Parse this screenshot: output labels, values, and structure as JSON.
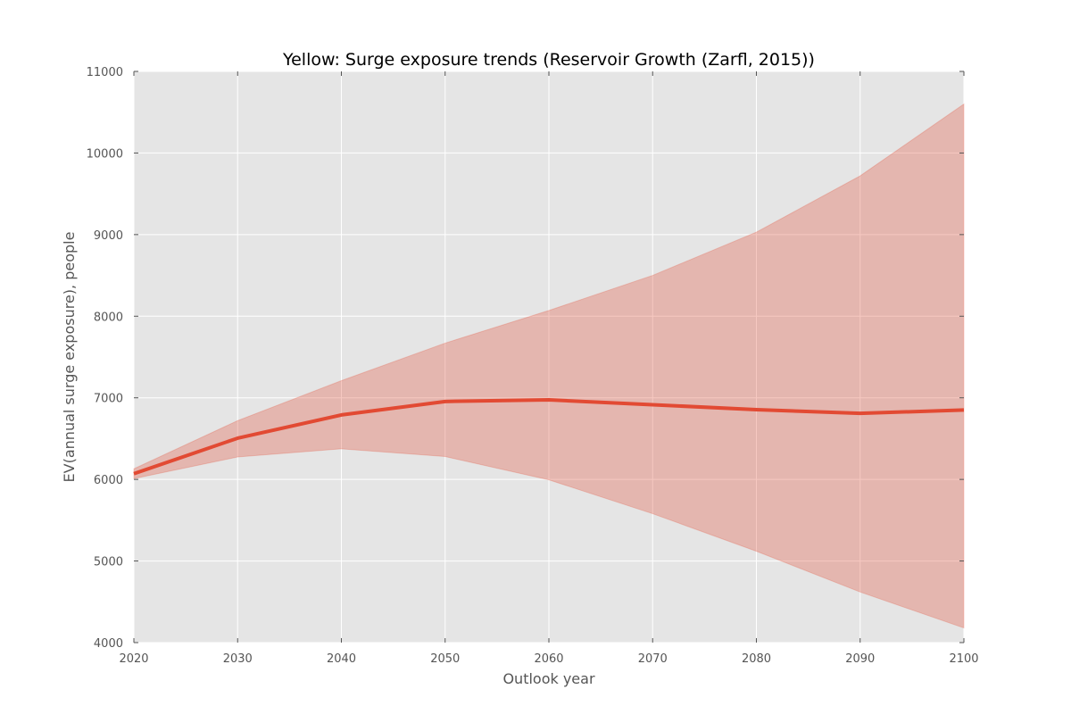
{
  "chart_data": {
    "type": "line",
    "title": "Yellow: Surge exposure trends (Reservoir Growth (Zarfl, 2015))",
    "xlabel": "Outlook year",
    "ylabel": "EV(annual surge exposure), people",
    "x": [
      2020,
      2030,
      2040,
      2050,
      2060,
      2070,
      2080,
      2090,
      2100
    ],
    "series": [
      {
        "values": [
          6070,
          6505,
          6790,
          6955,
          6975,
          6915,
          6855,
          6810,
          6850
        ],
        "lower": [
          6010,
          6275,
          6375,
          6280,
          5995,
          5580,
          5120,
          4620,
          4180
        ],
        "upper": [
          6130,
          6720,
          7210,
          7670,
          8070,
          8500,
          9030,
          9720,
          10600
        ]
      }
    ],
    "xlim": [
      2020,
      2100
    ],
    "ylim": [
      4000,
      11000
    ],
    "xticks": [
      2020,
      2030,
      2040,
      2050,
      2060,
      2070,
      2080,
      2090,
      2100
    ],
    "yticks": [
      4000,
      5000,
      6000,
      7000,
      8000,
      9000,
      10000,
      11000
    ],
    "grid": true,
    "colors": {
      "line": "#e24a33",
      "band": "#e24a33",
      "background": "#e5e5e5",
      "grid": "#ffffff",
      "tick_text": "#555555",
      "title_text": "#000000"
    }
  }
}
